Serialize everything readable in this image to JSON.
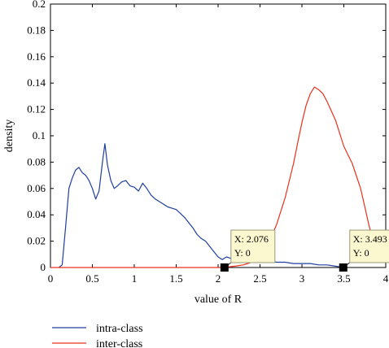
{
  "chart_data": {
    "type": "line",
    "xlabel": "value of R",
    "ylabel": "density",
    "xlim": [
      0,
      4
    ],
    "ylim": [
      0,
      0.2
    ],
    "xticks": [
      0,
      0.5,
      1,
      1.5,
      2,
      2.5,
      3,
      3.5,
      4
    ],
    "yticks": [
      0,
      0.02,
      0.04,
      0.06,
      0.08,
      0.1,
      0.12,
      0.14,
      0.16,
      0.18,
      0.2
    ],
    "xtick_labels": [
      "0",
      "0.5",
      "1",
      "1.5",
      "2",
      "2.5",
      "3",
      "3.5",
      "4"
    ],
    "ytick_labels": [
      "0",
      "0.02",
      "0.04",
      "0.06",
      "0.08",
      "0.1",
      "0.12",
      "0.14",
      "0.16",
      "0.18",
      "0.2"
    ],
    "grid": false,
    "legend_position": "bottom-left",
    "series": [
      {
        "name": "intra-class",
        "color": "#1f3f9e",
        "x": [
          0.1,
          0.14,
          0.18,
          0.22,
          0.26,
          0.3,
          0.34,
          0.38,
          0.42,
          0.46,
          0.5,
          0.54,
          0.58,
          0.62,
          0.65,
          0.68,
          0.72,
          0.76,
          0.8,
          0.85,
          0.9,
          0.95,
          1.0,
          1.05,
          1.1,
          1.15,
          1.2,
          1.25,
          1.3,
          1.35,
          1.4,
          1.45,
          1.5,
          1.55,
          1.6,
          1.65,
          1.7,
          1.75,
          1.8,
          1.85,
          1.9,
          1.95,
          2.0,
          2.05,
          2.1,
          2.15,
          2.2,
          2.3,
          2.4,
          2.5,
          2.6,
          2.7,
          2.8,
          2.9,
          3.0,
          3.1,
          3.2,
          3.3,
          3.4,
          3.5
        ],
        "y": [
          0,
          0.002,
          0.03,
          0.06,
          0.068,
          0.074,
          0.076,
          0.072,
          0.07,
          0.066,
          0.06,
          0.052,
          0.058,
          0.08,
          0.094,
          0.078,
          0.066,
          0.06,
          0.062,
          0.065,
          0.066,
          0.062,
          0.061,
          0.058,
          0.064,
          0.06,
          0.055,
          0.052,
          0.05,
          0.048,
          0.046,
          0.045,
          0.044,
          0.041,
          0.038,
          0.034,
          0.03,
          0.025,
          0.022,
          0.02,
          0.016,
          0.012,
          0.008,
          0.006,
          0.008,
          0.007,
          0.006,
          0.005,
          0.004,
          0.006,
          0.005,
          0.004,
          0.004,
          0.003,
          0.003,
          0.003,
          0.002,
          0.002,
          0.001,
          0.0
        ]
      },
      {
        "name": "inter-class",
        "color": "#e8311c",
        "x": [
          0,
          0.5,
          1,
          1.5,
          2,
          2.1,
          2.2,
          2.3,
          2.4,
          2.5,
          2.6,
          2.7,
          2.8,
          2.9,
          2.95,
          3.0,
          3.05,
          3.1,
          3.15,
          3.2,
          3.25,
          3.3,
          3.4,
          3.5,
          3.6,
          3.7,
          3.75,
          3.8,
          3.85,
          3.9,
          3.95,
          4.0
        ],
        "y": [
          0,
          0,
          0,
          0,
          0,
          0.0003,
          0.001,
          0.002,
          0.004,
          0.009,
          0.018,
          0.033,
          0.053,
          0.079,
          0.095,
          0.11,
          0.123,
          0.132,
          0.137,
          0.135,
          0.132,
          0.126,
          0.112,
          0.092,
          0.079,
          0.06,
          0.046,
          0.032,
          0.02,
          0.013,
          0.008,
          0.005
        ]
      }
    ],
    "datatips": [
      {
        "x": 2.076,
        "y": 0,
        "x_text": "X: 2.076",
        "y_text": "Y: 0"
      },
      {
        "x": 3.493,
        "y": 0,
        "x_text": "X: 3.493",
        "y_text": "Y: 0"
      }
    ]
  }
}
